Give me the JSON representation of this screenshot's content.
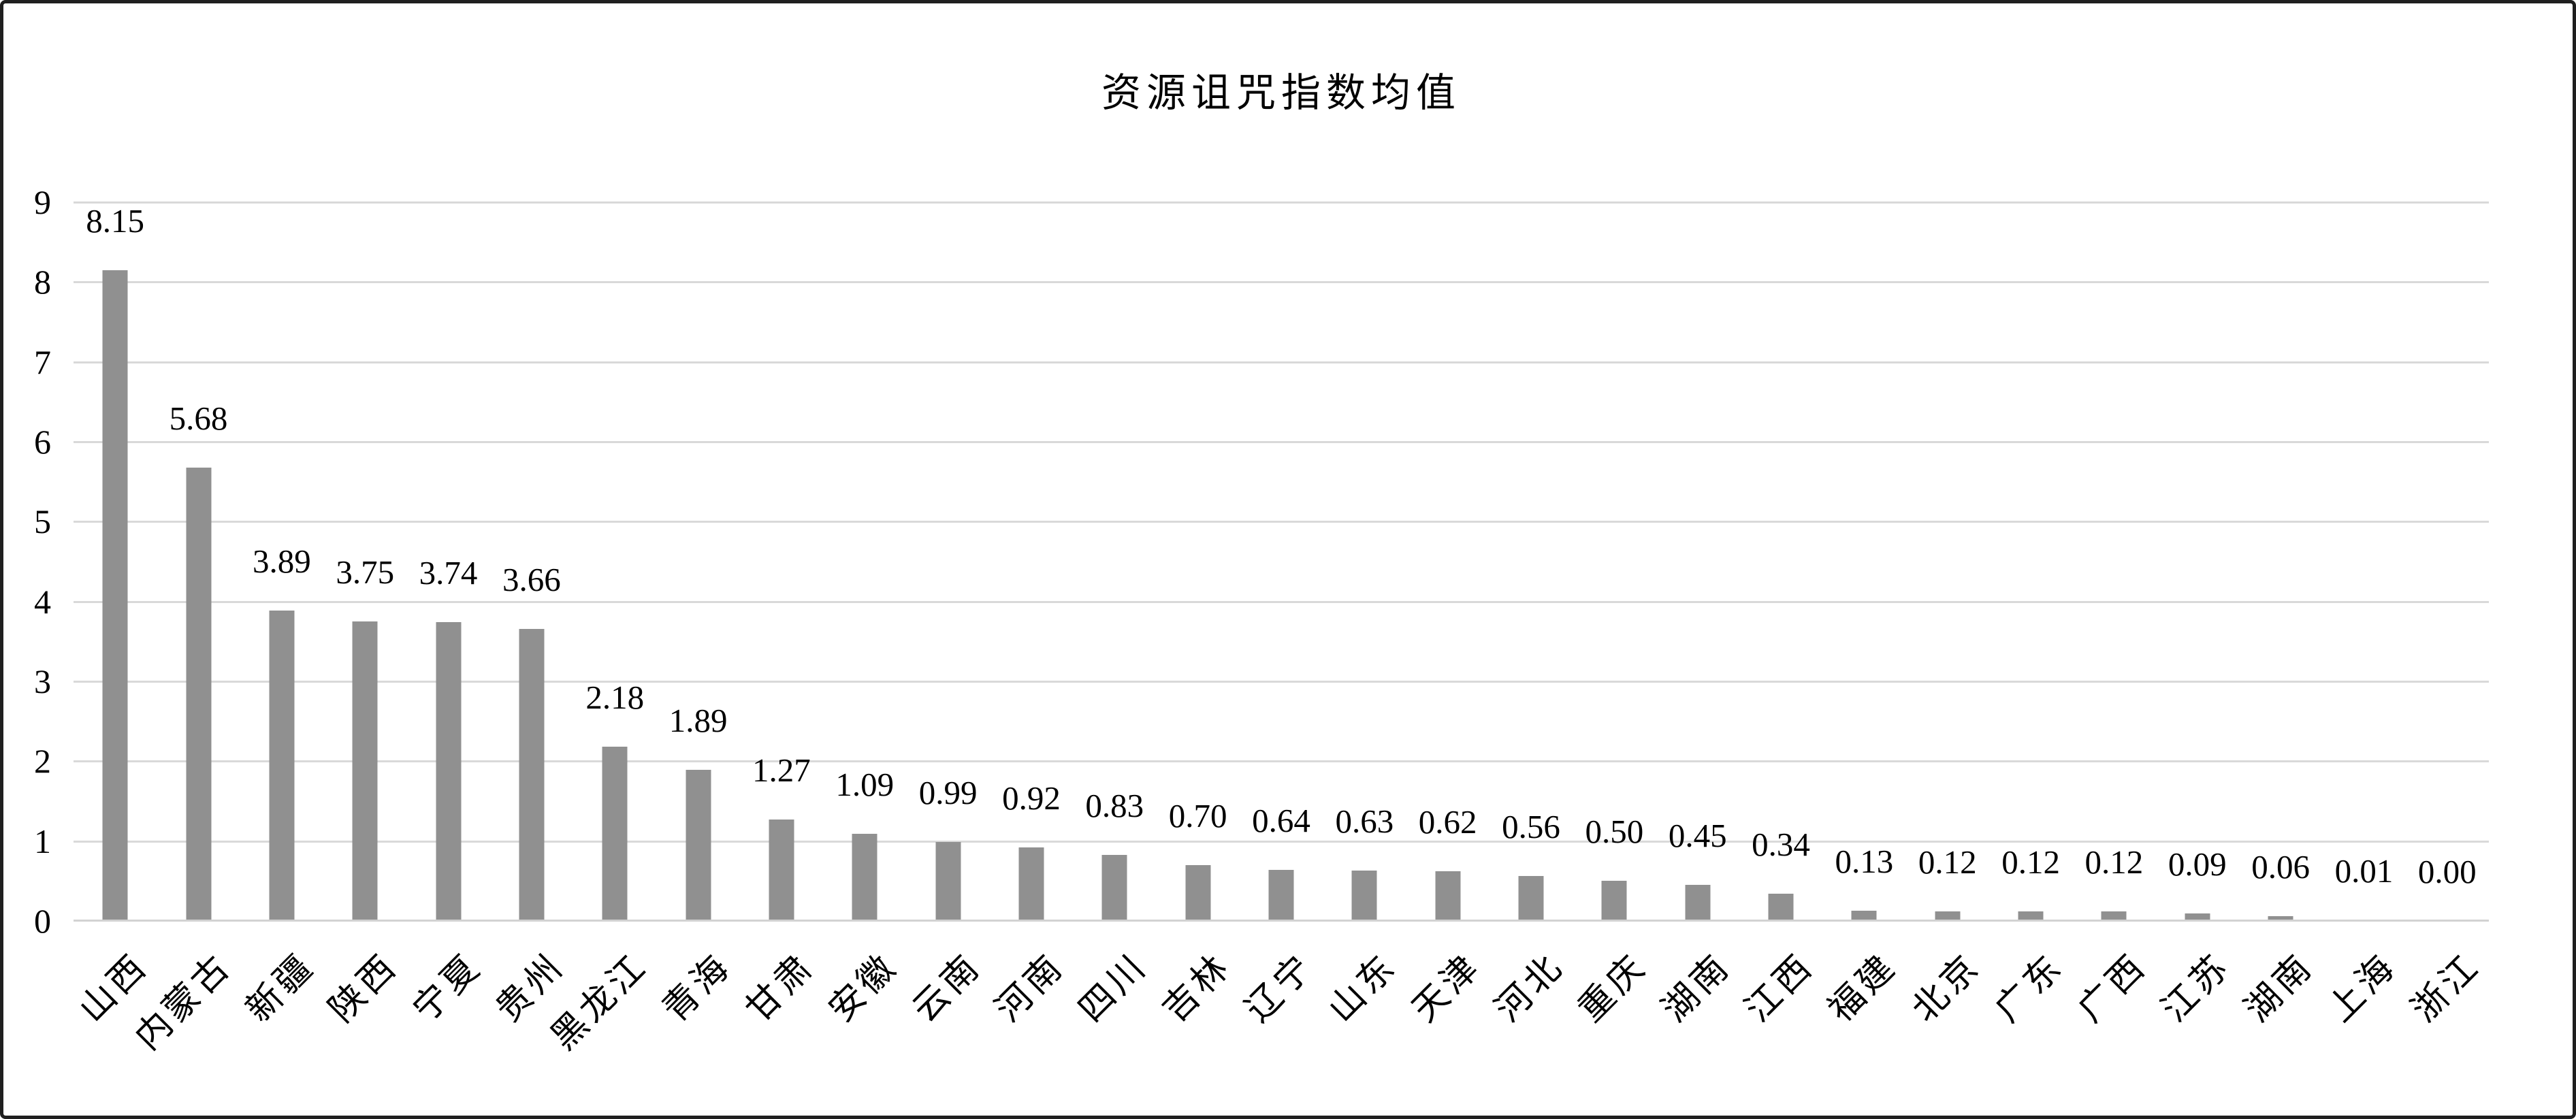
{
  "title": "资源诅咒指数均值",
  "chart_data": {
    "type": "bar",
    "title": "资源诅咒指数均值",
    "categories": [
      "山西",
      "内蒙古",
      "新疆",
      "陕西",
      "宁夏",
      "贵州",
      "黑龙江",
      "青海",
      "甘肃",
      "安徽",
      "云南",
      "河南",
      "四川",
      "吉林",
      "辽宁",
      "山东",
      "天津",
      "河北",
      "重庆",
      "湖南",
      "江西",
      "福建",
      "北京",
      "广东",
      "广西",
      "江苏",
      "湖南",
      "上海",
      "浙江"
    ],
    "values": [
      8.15,
      5.68,
      3.89,
      3.75,
      3.74,
      3.66,
      2.18,
      1.89,
      1.27,
      1.09,
      0.99,
      0.92,
      0.83,
      0.7,
      0.64,
      0.63,
      0.62,
      0.56,
      0.5,
      0.45,
      0.34,
      0.13,
      0.12,
      0.12,
      0.12,
      0.09,
      0.06,
      0.01,
      0.0
    ],
    "data_labels": [
      "8.15",
      "5.68",
      "3.89",
      "3.75",
      "3.74",
      "3.66",
      "2.18",
      "1.89",
      "1.27",
      "1.09",
      "0.99",
      "0.92",
      "0.83",
      "0.70",
      "0.64",
      "0.63",
      "0.62",
      "0.56",
      "0.50",
      "0.45",
      "0.34",
      "0.13",
      "0.12",
      "0.12",
      "0.12",
      "0.09",
      "0.06",
      "0.01",
      "0.00"
    ],
    "y_ticks": [
      "0",
      "1",
      "2",
      "3",
      "4",
      "5",
      "6",
      "7",
      "8",
      "9"
    ],
    "ylim": [
      0,
      9
    ],
    "xlabel": "",
    "ylabel": "",
    "grid": true,
    "legend": false,
    "x_label_rotation_deg": 45,
    "bar_color": "#909090",
    "gridline_color": "#d9d9d9",
    "axis_line_color": "#d2d2d2",
    "text_color": "#000000",
    "frame_border_color": "#1f1f1f",
    "background_color": "#ffffff"
  }
}
